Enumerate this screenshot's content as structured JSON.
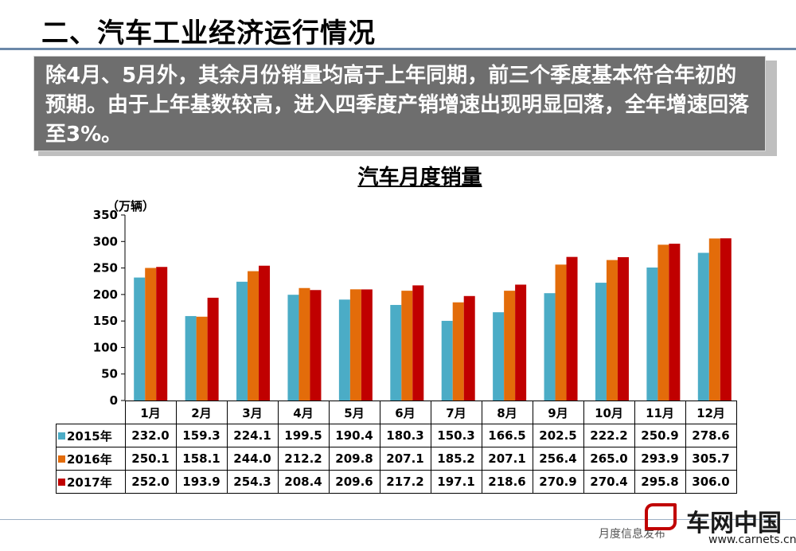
{
  "slide": {
    "title": "二、汽车工业经济运行情况",
    "callout": "除4月、5月外，其余月份销量均高于上年同期，前三个季度基本符合年初的预期。由于上年基数较高，进入四季度产销增速出现明显回落，全年增速回落至3%。",
    "footer": "月度信息发布",
    "logo_text": "车网中国",
    "logo_url": "www.carnets.cn"
  },
  "chart_data": {
    "type": "bar",
    "title": "汽车月度销量",
    "unit": "（万辆）",
    "categories": [
      "1月",
      "2月",
      "3月",
      "4月",
      "5月",
      "6月",
      "7月",
      "8月",
      "9月",
      "10月",
      "11月",
      "12月"
    ],
    "series": [
      {
        "name": "2015年",
        "color": "#4bacc6",
        "values": [
          232.0,
          159.3,
          224.1,
          199.5,
          190.4,
          180.3,
          150.3,
          166.5,
          202.5,
          222.2,
          250.9,
          278.6
        ]
      },
      {
        "name": "2016年",
        "color": "#e36c0a",
        "values": [
          250.1,
          158.1,
          244.0,
          212.2,
          209.8,
          207.1,
          185.2,
          207.1,
          256.4,
          265.0,
          293.9,
          305.7
        ]
      },
      {
        "name": "2017年",
        "color": "#c00000",
        "values": [
          252.0,
          193.9,
          254.3,
          208.4,
          209.6,
          217.2,
          197.1,
          218.6,
          270.9,
          270.4,
          295.8,
          306.0
        ]
      }
    ],
    "ylim": [
      0,
      350
    ],
    "yticks": [
      0,
      50,
      100,
      150,
      200,
      250,
      300,
      350
    ],
    "grid": false,
    "legend": "data-table"
  }
}
